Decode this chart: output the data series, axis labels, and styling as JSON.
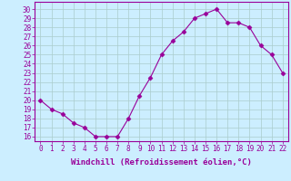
{
  "x": [
    0,
    1,
    2,
    3,
    4,
    5,
    6,
    7,
    8,
    9,
    10,
    11,
    12,
    13,
    14,
    15,
    16,
    17,
    18,
    19,
    20,
    21,
    22
  ],
  "y": [
    20,
    19,
    18.5,
    17.5,
    17,
    16,
    16,
    16,
    18,
    20.5,
    22.5,
    25,
    26.5,
    27.5,
    29,
    29.5,
    30,
    28.5,
    28.5,
    28,
    26,
    25,
    23
  ],
  "line_color": "#990099",
  "marker": "D",
  "marker_size": 2.5,
  "bg_color": "#cceeff",
  "grid_color": "#aacccc",
  "xlabel": "Windchill (Refroidissement éolien,°C)",
  "xlabel_color": "#990099",
  "ylabel_ticks": [
    16,
    17,
    18,
    19,
    20,
    21,
    22,
    23,
    24,
    25,
    26,
    27,
    28,
    29,
    30
  ],
  "ylim": [
    15.5,
    30.8
  ],
  "xlim": [
    -0.5,
    22.5
  ],
  "xticks": [
    0,
    1,
    2,
    3,
    4,
    5,
    6,
    7,
    8,
    9,
    10,
    11,
    12,
    13,
    14,
    15,
    16,
    17,
    18,
    19,
    20,
    21,
    22
  ],
  "tick_color": "#990099",
  "border_color": "#990099",
  "tick_fontsize": 5.5,
  "xlabel_fontsize": 6.5
}
